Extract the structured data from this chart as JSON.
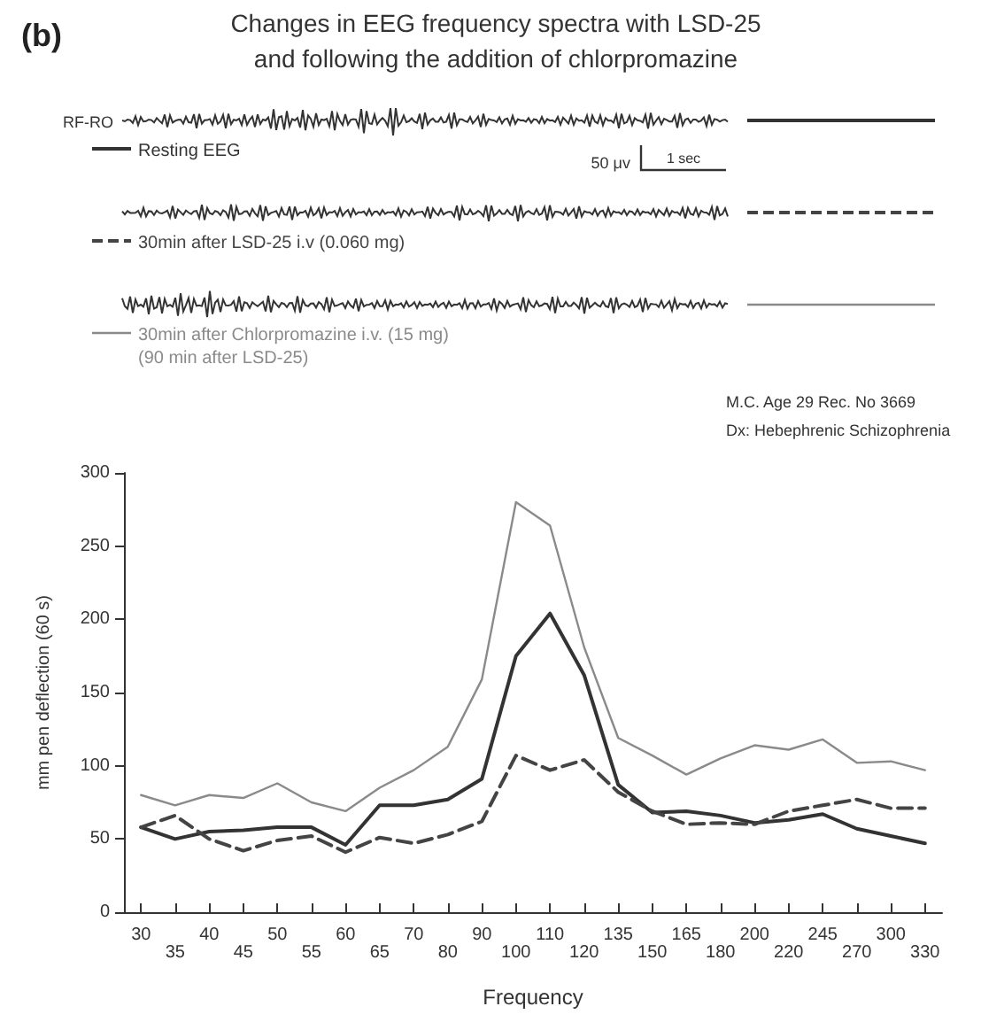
{
  "chart_data": {
    "type": "line",
    "title": "Changes in EEG frequency spectra with LSD-25\nand following the addition of chlorpromazine",
    "xlabel": "Frequency",
    "ylabel": "mm pen deflection (60 s)",
    "annotations": [
      "(b)",
      "RF-RO",
      "50 μv",
      "1 sec",
      "M.C. Age 29 Rec. No 3669",
      "Dx: Hebephrenic Schizophrenia"
    ],
    "categories": [
      "30",
      "35",
      "40",
      "45",
      "50",
      "55",
      "60",
      "65",
      "70",
      "80",
      "90",
      "100",
      "110",
      "120",
      "135",
      "150",
      "165",
      "180",
      "200",
      "220",
      "245",
      "270",
      "300",
      "330"
    ],
    "series": [
      {
        "name": "Resting EEG",
        "color": "#333333",
        "line_style": "solid",
        "values": [
          58,
          50,
          55,
          56,
          58,
          58,
          46,
          73,
          73,
          77,
          91,
          175,
          204,
          162,
          87,
          68,
          69,
          66,
          61,
          63,
          67,
          57,
          52,
          47
        ]
      },
      {
        "name": "30min after LSD-25 i.v (0.060 mg)",
        "color": "#444444",
        "line_style": "dashed",
        "values": [
          58,
          66,
          50,
          42,
          49,
          52,
          41,
          51,
          47,
          53,
          62,
          107,
          97,
          104,
          82,
          69,
          60,
          61,
          60,
          69,
          73,
          77,
          71,
          71
        ]
      },
      {
        "name": "30min after Chlorpromazine i.v. (15 mg)\n(90 min after LSD-25)",
        "color": "#8a8a8a",
        "line_style": "solid",
        "values": [
          80,
          73,
          80,
          78,
          88,
          75,
          69,
          85,
          97,
          113,
          159,
          280,
          264,
          181,
          119,
          107,
          94,
          105,
          114,
          111,
          118,
          102,
          103,
          97
        ]
      }
    ],
    "ylim": [
      0,
      300
    ],
    "yticks": [
      0,
      50,
      100,
      150,
      200,
      250,
      300
    ],
    "grid": false,
    "legend": "top",
    "marker": "none"
  }
}
